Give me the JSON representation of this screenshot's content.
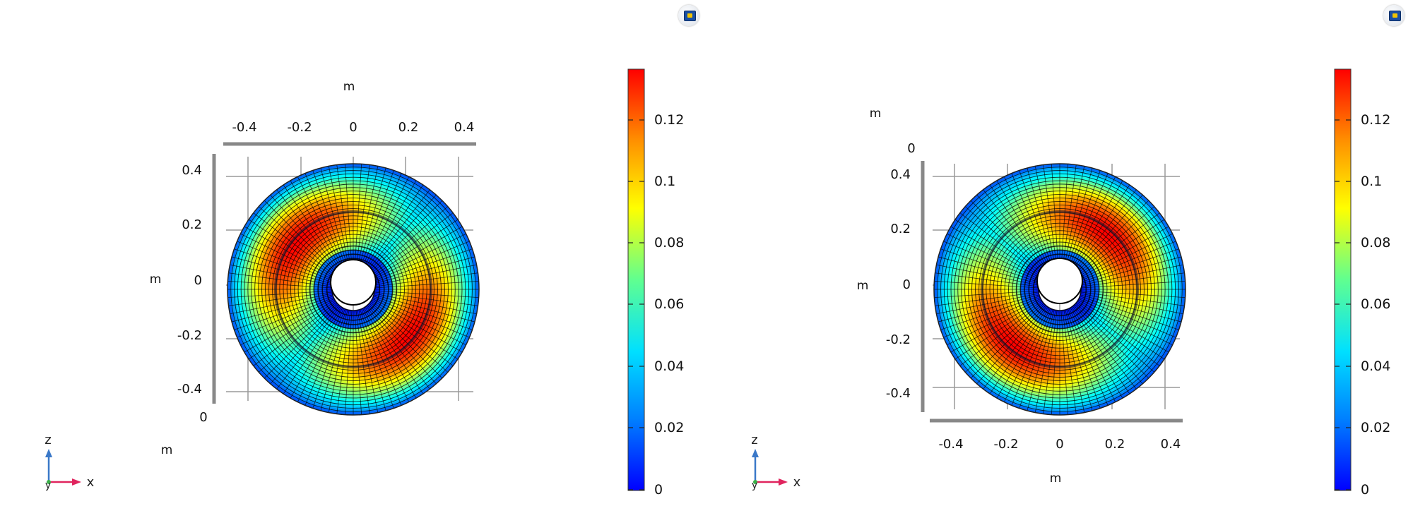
{
  "colorscale": {
    "stops": [
      "#0000ff",
      "#00a0ff",
      "#00ffff",
      "#80ff80",
      "#ffff00",
      "#ff8000",
      "#ff0000"
    ],
    "range": [
      0,
      0.137
    ]
  },
  "panels": [
    {
      "id": "left",
      "x_axis_ticks": [
        "-0.4",
        "-0.2",
        "0",
        "0.2",
        "0.4"
      ],
      "z_axis_ticks": [
        "0.4",
        "0.2",
        "0",
        "-0.2",
        "-0.4"
      ],
      "x_unit": "m",
      "z_unit": "m",
      "y_unit": "m",
      "y_zero": "0",
      "colorbar_ticks": [
        "0.12",
        "0.1",
        "0.08",
        "0.06",
        "0.04",
        "0.02",
        "0"
      ],
      "triad": {
        "z": "z",
        "x": "x",
        "y": "y"
      },
      "hotspot_angle_deg": 140
    },
    {
      "id": "right",
      "x_axis_ticks": [
        "-0.4",
        "-0.2",
        "0",
        "0.2",
        "0.4"
      ],
      "z_axis_ticks": [
        "0.4",
        "0.2",
        "0",
        "-0.2",
        "-0.4"
      ],
      "x_unit": "m",
      "z_unit": "m",
      "y_unit": "m",
      "y_zero": "0",
      "colorbar_ticks": [
        "0.12",
        "0.1",
        "0.08",
        "0.06",
        "0.04",
        "0.02",
        "0"
      ],
      "triad": {
        "z": "z",
        "x": "x",
        "y": "y"
      },
      "hotspot_angle_deg": 50
    }
  ]
}
